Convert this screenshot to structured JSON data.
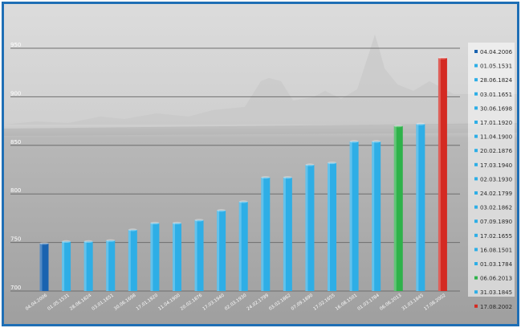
{
  "colors": {
    "frame": "#1f6fb5",
    "background_sky": "#d4d4d4",
    "background_water": "#a9a9a9",
    "grid": "#6f6f6f",
    "bar_blue": "#2eaee6",
    "bar_dark_blue": "#1a63b0",
    "bar_green": "#2eb24a",
    "bar_red": "#d42a22"
  },
  "chart_data": {
    "type": "bar",
    "title": "",
    "xlabel": "",
    "ylabel": "",
    "ylim": [
      700,
      950
    ],
    "yticks": [
      700,
      750,
      800,
      850,
      900,
      950
    ],
    "grid": true,
    "legend_position": "right",
    "categories": [
      "04.04.2006",
      "01.05.1531",
      "28.06.1824",
      "03.01.1651",
      "30.06.1698",
      "17.01.1920",
      "11.04.1900",
      "20.02.1876",
      "17.03.1940",
      "02.03.1930",
      "24.02.1799",
      "03.02.1862",
      "07.09.1890",
      "17.02.1655",
      "16.08.1501",
      "01.03.1784",
      "06.06.2013",
      "31.03.1845",
      "17.08.2002"
    ],
    "values": [
      749,
      751,
      751,
      752,
      763,
      770,
      770,
      773,
      783,
      792,
      817,
      817,
      830,
      832,
      854,
      854,
      870,
      872,
      940
    ],
    "bar_colors": [
      "dark_blue",
      "blue",
      "blue",
      "blue",
      "blue",
      "blue",
      "blue",
      "blue",
      "blue",
      "blue",
      "blue",
      "blue",
      "blue",
      "blue",
      "blue",
      "blue",
      "green",
      "blue",
      "red"
    ],
    "legend": [
      {
        "label": "04.04.2006",
        "color": "dark_blue"
      },
      {
        "label": "01.05.1531",
        "color": "blue"
      },
      {
        "label": "28.06.1824",
        "color": "blue"
      },
      {
        "label": "03.01.1651",
        "color": "blue"
      },
      {
        "label": "30.06.1698",
        "color": "blue"
      },
      {
        "label": "17.01.1920",
        "color": "blue"
      },
      {
        "label": "11.04.1900",
        "color": "blue"
      },
      {
        "label": "20.02.1876",
        "color": "blue"
      },
      {
        "label": "17.03.1940",
        "color": "blue"
      },
      {
        "label": "02.03.1930",
        "color": "blue"
      },
      {
        "label": "24.02.1799",
        "color": "blue"
      },
      {
        "label": "03.02.1862",
        "color": "blue"
      },
      {
        "label": "07.09.1890",
        "color": "blue"
      },
      {
        "label": "17.02.1655",
        "color": "blue"
      },
      {
        "label": "16.08.1501",
        "color": "blue"
      },
      {
        "label": "01.03.1784",
        "color": "blue"
      },
      {
        "label": "06.06.2013",
        "color": "green"
      },
      {
        "label": "31.03.1845",
        "color": "blue"
      },
      {
        "label": "17.08.2002",
        "color": "red"
      }
    ]
  }
}
